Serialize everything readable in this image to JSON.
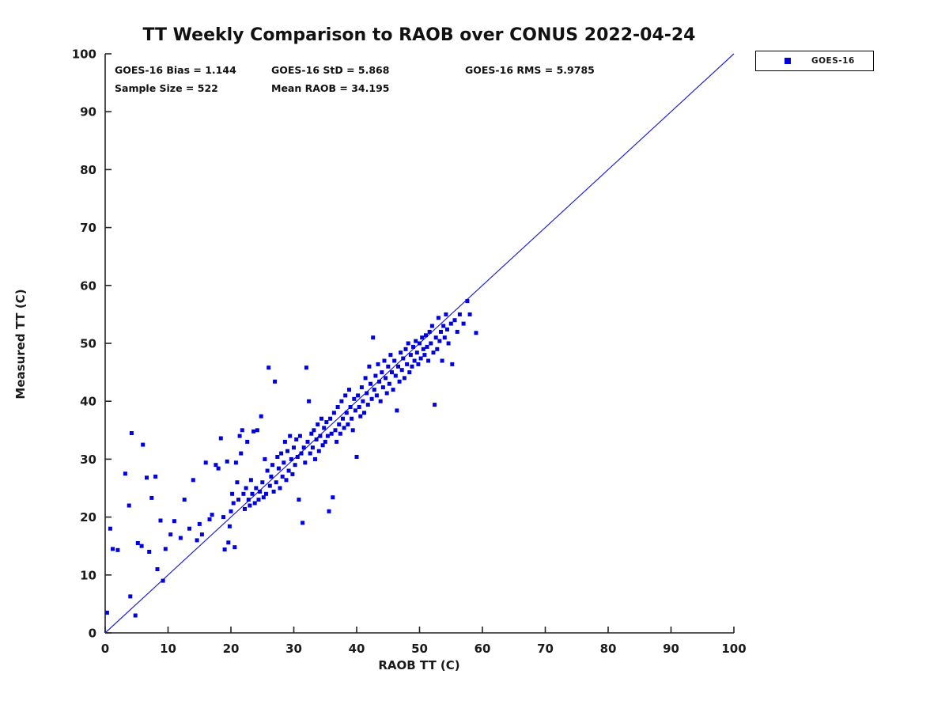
{
  "title": "TT Weekly Comparison to RAOB over CONUS 2022-04-24",
  "annotations": {
    "bias": "GOES-16 Bias = 1.144",
    "std": "GOES-16 StD = 5.868",
    "rms": "GOES-16 RMS = 5.9785",
    "sample_size": "Sample Size = 522",
    "mean_raob": "Mean RAOB = 34.195"
  },
  "legend": {
    "label": "GOES-16"
  },
  "colors": {
    "marker": "#0000dd",
    "line": "#2222cc",
    "axis": "#222222",
    "text": "#111111"
  },
  "chart_data": {
    "type": "scatter",
    "title": "TT Weekly Comparison to RAOB over CONUS 2022-04-24",
    "xlabel": "RAOB TT (C)",
    "ylabel": "Measured TT (C)",
    "xlim": [
      0,
      100
    ],
    "ylim": [
      0,
      100
    ],
    "xticks": [
      0,
      10,
      20,
      30,
      40,
      50,
      60,
      70,
      80,
      90,
      100
    ],
    "yticks": [
      0,
      10,
      20,
      30,
      40,
      50,
      60,
      70,
      80,
      90,
      100
    ],
    "grid": false,
    "legend_position": "top-right-outside",
    "identity_line": {
      "x": [
        0,
        100
      ],
      "y": [
        0,
        100
      ]
    },
    "series_name": "GOES-16",
    "stats": {
      "bias": 1.144,
      "std": 5.868,
      "rms": 5.9785,
      "sample_size": 522,
      "mean_raob": 34.195
    },
    "points": [
      [
        0.3,
        3.5
      ],
      [
        0.8,
        18
      ],
      [
        1.2,
        14.5
      ],
      [
        2,
        14.3
      ],
      [
        3.2,
        27.5
      ],
      [
        3.8,
        22
      ],
      [
        4.2,
        34.5
      ],
      [
        4,
        6.3
      ],
      [
        4.8,
        3
      ],
      [
        5.2,
        15.5
      ],
      [
        5.8,
        15
      ],
      [
        6,
        32.5
      ],
      [
        6.6,
        26.8
      ],
      [
        7,
        14
      ],
      [
        7.4,
        23.3
      ],
      [
        8,
        27
      ],
      [
        8.3,
        11
      ],
      [
        8.8,
        19.4
      ],
      [
        9.2,
        9
      ],
      [
        9.6,
        14.5
      ],
      [
        10.4,
        17
      ],
      [
        11,
        19.3
      ],
      [
        12,
        16.4
      ],
      [
        12.6,
        23
      ],
      [
        13.4,
        18
      ],
      [
        14,
        26.4
      ],
      [
        14.6,
        16
      ],
      [
        15,
        18.8
      ],
      [
        15.4,
        17
      ],
      [
        16,
        29.4
      ],
      [
        16.6,
        19.6
      ],
      [
        17,
        20.4
      ],
      [
        17.6,
        29
      ],
      [
        18,
        28.4
      ],
      [
        18.4,
        33.6
      ],
      [
        18.8,
        20
      ],
      [
        19,
        14.4
      ],
      [
        19.4,
        29.6
      ],
      [
        19.6,
        15.6
      ],
      [
        19.8,
        18.4
      ],
      [
        20,
        21
      ],
      [
        20.2,
        24
      ],
      [
        20.4,
        22.4
      ],
      [
        20.6,
        14.8
      ],
      [
        20.8,
        29.4
      ],
      [
        21,
        26
      ],
      [
        21.2,
        23
      ],
      [
        21.4,
        34
      ],
      [
        21.6,
        31
      ],
      [
        21.8,
        35
      ],
      [
        22,
        24
      ],
      [
        22.2,
        21.4
      ],
      [
        22.4,
        25
      ],
      [
        22.6,
        33
      ],
      [
        22.8,
        23
      ],
      [
        23,
        22
      ],
      [
        23.2,
        26.4
      ],
      [
        23.4,
        24
      ],
      [
        23.6,
        34.8
      ],
      [
        23.8,
        22.4
      ],
      [
        24,
        25
      ],
      [
        24.2,
        35
      ],
      [
        24.4,
        23
      ],
      [
        24.6,
        24.4
      ],
      [
        24.8,
        37.4
      ],
      [
        25,
        26
      ],
      [
        25.2,
        23.4
      ],
      [
        25.4,
        30
      ],
      [
        25.6,
        24
      ],
      [
        25.8,
        28
      ],
      [
        26,
        45.8
      ],
      [
        26.2,
        25.4
      ],
      [
        26.4,
        27
      ],
      [
        26.6,
        29
      ],
      [
        26.8,
        24.4
      ],
      [
        27,
        43.4
      ],
      [
        27.2,
        26
      ],
      [
        27.4,
        30.4
      ],
      [
        27.6,
        28.4
      ],
      [
        27.8,
        25
      ],
      [
        28,
        31
      ],
      [
        28.2,
        27
      ],
      [
        28.4,
        29.4
      ],
      [
        28.6,
        33
      ],
      [
        28.8,
        26.4
      ],
      [
        29,
        31.4
      ],
      [
        29.2,
        28
      ],
      [
        29.4,
        34
      ],
      [
        29.6,
        30
      ],
      [
        29.8,
        27.4
      ],
      [
        30,
        32
      ],
      [
        30.2,
        29
      ],
      [
        30.4,
        33.4
      ],
      [
        30.6,
        30.4
      ],
      [
        30.8,
        23
      ],
      [
        31,
        34
      ],
      [
        31.2,
        31
      ],
      [
        31.4,
        19
      ],
      [
        31.6,
        32
      ],
      [
        31.8,
        29.4
      ],
      [
        32,
        45.8
      ],
      [
        32.2,
        33
      ],
      [
        32.4,
        40
      ],
      [
        32.6,
        31
      ],
      [
        32.8,
        34.4
      ],
      [
        33,
        32
      ],
      [
        33.2,
        35
      ],
      [
        33.4,
        30
      ],
      [
        33.6,
        33.4
      ],
      [
        33.8,
        36
      ],
      [
        34,
        31.4
      ],
      [
        34.2,
        34
      ],
      [
        34.4,
        37
      ],
      [
        34.6,
        32.4
      ],
      [
        34.8,
        35.4
      ],
      [
        35,
        33
      ],
      [
        35.2,
        36.4
      ],
      [
        35.4,
        34
      ],
      [
        35.6,
        21
      ],
      [
        35.8,
        37
      ],
      [
        36,
        34.4
      ],
      [
        36.2,
        23.4
      ],
      [
        36.4,
        38
      ],
      [
        36.6,
        35
      ],
      [
        36.8,
        33
      ],
      [
        37,
        39
      ],
      [
        37.2,
        36
      ],
      [
        37.4,
        34.4
      ],
      [
        37.6,
        40
      ],
      [
        37.8,
        37
      ],
      [
        38,
        35.4
      ],
      [
        38.2,
        41
      ],
      [
        38.4,
        38
      ],
      [
        38.6,
        36
      ],
      [
        38.8,
        42
      ],
      [
        39,
        39
      ],
      [
        39.2,
        37
      ],
      [
        39.4,
        35
      ],
      [
        39.6,
        40.4
      ],
      [
        39.8,
        38.4
      ],
      [
        40,
        30.4
      ],
      [
        40.2,
        41
      ],
      [
        40.4,
        39
      ],
      [
        40.6,
        37.4
      ],
      [
        40.8,
        42.4
      ],
      [
        41,
        40
      ],
      [
        41.2,
        38
      ],
      [
        41.4,
        44
      ],
      [
        41.6,
        41.4
      ],
      [
        41.8,
        39.4
      ],
      [
        42,
        46
      ],
      [
        42.2,
        43
      ],
      [
        42.4,
        40.4
      ],
      [
        42.6,
        51
      ],
      [
        42.8,
        42
      ],
      [
        43,
        44.4
      ],
      [
        43.2,
        41
      ],
      [
        43.4,
        46.4
      ],
      [
        43.6,
        43.4
      ],
      [
        43.8,
        40
      ],
      [
        44,
        45
      ],
      [
        44.2,
        42.4
      ],
      [
        44.4,
        47
      ],
      [
        44.6,
        44
      ],
      [
        44.8,
        41.4
      ],
      [
        45,
        46
      ],
      [
        45.2,
        43
      ],
      [
        45.4,
        48
      ],
      [
        45.6,
        45
      ],
      [
        45.8,
        42
      ],
      [
        46,
        47
      ],
      [
        46.2,
        44.4
      ],
      [
        46.4,
        38.4
      ],
      [
        46.6,
        46
      ],
      [
        46.8,
        43.4
      ],
      [
        47,
        48.4
      ],
      [
        47.2,
        45.4
      ],
      [
        47.4,
        47.4
      ],
      [
        47.6,
        44
      ],
      [
        47.8,
        49
      ],
      [
        48,
        46.4
      ],
      [
        48.2,
        50
      ],
      [
        48.4,
        45
      ],
      [
        48.6,
        48
      ],
      [
        48.8,
        46
      ],
      [
        49,
        49.4
      ],
      [
        49.2,
        47
      ],
      [
        49.4,
        50.4
      ],
      [
        49.6,
        48.4
      ],
      [
        49.8,
        46.4
      ],
      [
        50,
        50
      ],
      [
        50.2,
        47.4
      ],
      [
        50.4,
        51
      ],
      [
        50.6,
        49
      ],
      [
        50.8,
        48
      ],
      [
        51,
        51.4
      ],
      [
        51.2,
        49.4
      ],
      [
        51.4,
        47
      ],
      [
        51.6,
        52
      ],
      [
        51.8,
        50
      ],
      [
        52,
        53
      ],
      [
        52.2,
        48.4
      ],
      [
        52.4,
        39.4
      ],
      [
        52.6,
        51
      ],
      [
        52.8,
        49
      ],
      [
        53,
        54.4
      ],
      [
        53.2,
        50.4
      ],
      [
        53.4,
        52
      ],
      [
        53.6,
        47
      ],
      [
        53.8,
        53
      ],
      [
        54,
        51
      ],
      [
        54.2,
        55
      ],
      [
        54.4,
        52.4
      ],
      [
        54.6,
        50
      ],
      [
        55,
        53.4
      ],
      [
        55.2,
        46.4
      ],
      [
        55.6,
        54
      ],
      [
        56,
        52
      ],
      [
        56.4,
        55
      ],
      [
        57,
        53.4
      ],
      [
        57.6,
        57.3
      ],
      [
        58,
        55
      ],
      [
        59,
        51.8
      ]
    ]
  }
}
